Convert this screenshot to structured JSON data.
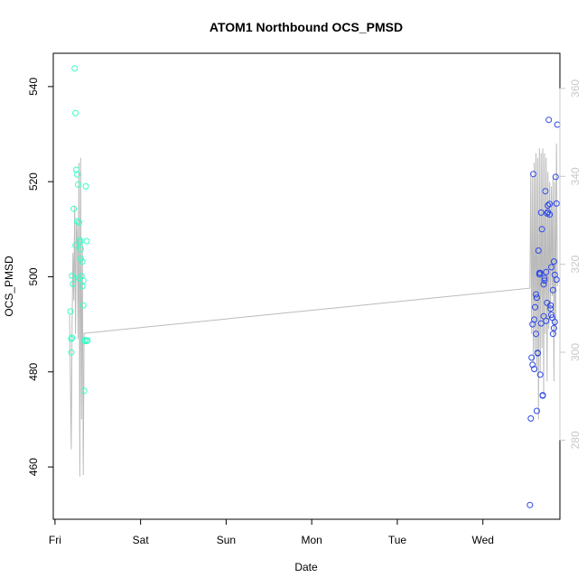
{
  "chart_data": {
    "type": "scatter",
    "title": "ATOM1 Northbound OCS_PMSD",
    "xlabel": "Date",
    "ylabel": "OCS_PMSD",
    "x_ticks": [
      "Fri",
      "Sat",
      "Sun",
      "Mon",
      "Tue",
      "Wed"
    ],
    "xlim": [
      -0.02,
      5.9
    ],
    "ylim": [
      449,
      547
    ],
    "y_ticks": [
      460,
      480,
      500,
      520,
      540
    ],
    "y2_ticks": [
      280,
      300,
      320,
      340,
      360
    ],
    "y2lim": [
      262,
      368
    ],
    "grid": false,
    "colors": {
      "series_fri": "#33ffc4",
      "series_wed": "#2c48e6",
      "line": "#bbbbbb",
      "axis": "#000000",
      "right_axis": "#c8c8c8"
    },
    "series": [
      {
        "color": "#33ffc4",
        "x": [
          0.18,
          0.2,
          0.23,
          0.24,
          0.25,
          0.26,
          0.27,
          0.28,
          0.29,
          0.3,
          0.31,
          0.32,
          0.33,
          0.34,
          0.35,
          0.36,
          0.37,
          0.38,
          0.19,
          0.21,
          0.22,
          0.33,
          0.2,
          0.26,
          0.3,
          0.28,
          0.32,
          0.35,
          0.37,
          0.19,
          0.24,
          0.29
        ],
        "y": [
          492.7,
          487.2,
          543.8,
          534.4,
          522.5,
          521.5,
          519.4,
          511.4,
          507.7,
          503.8,
          500.1,
          498.0,
          494.0,
          476.0,
          486.5,
          519.0,
          507.5,
          486.6,
          484.1,
          498.5,
          514.3,
          499.2,
          500.2,
          511.7,
          505.8,
          499.7,
          503.2,
          486.7,
          486.5,
          486.9,
          506.6,
          507.3
        ]
      },
      {
        "color": "#2c48e6",
        "x": [
          5.55,
          5.57,
          5.59,
          5.6,
          5.61,
          5.62,
          5.63,
          5.64,
          5.65,
          5.66,
          5.67,
          5.68,
          5.69,
          5.7,
          5.71,
          5.72,
          5.73,
          5.74,
          5.75,
          5.76,
          5.77,
          5.78,
          5.79,
          5.8,
          5.81,
          5.82,
          5.83,
          5.84,
          5.85,
          5.86,
          5.56,
          5.58,
          5.6,
          5.62,
          5.64,
          5.66,
          5.68,
          5.7,
          5.72,
          5.74,
          5.76,
          5.78,
          5.8,
          5.82,
          5.84,
          5.86,
          5.58,
          5.63,
          5.67,
          5.71,
          5.75,
          5.79,
          5.83,
          5.87
        ],
        "y": [
          452.0,
          483.0,
          521.6,
          480.6,
          493.6,
          488.0,
          471.8,
          484.0,
          505.5,
          500.5,
          479.4,
          513.5,
          510.0,
          475.1,
          498.4,
          499.2,
          518.0,
          501.0,
          494.5,
          513.6,
          533.0,
          515.3,
          493.3,
          502.0,
          491.4,
          497.2,
          503.2,
          490.5,
          521.0,
          515.4,
          470.2,
          481.5,
          491.0,
          496.3,
          483.9,
          500.8,
          490.2,
          475.0,
          499.7,
          490.7,
          515.0,
          513.1,
          492.0,
          488.0,
          500.4,
          499.4,
          490.0,
          495.6,
          500.8,
          491.7,
          513.3,
          494.0,
          489.2,
          532.0
        ]
      }
    ],
    "line": {
      "x": [
        0.17,
        0.18,
        0.19,
        0.2,
        0.21,
        0.22,
        0.23,
        0.24,
        0.25,
        0.26,
        0.27,
        0.28,
        0.29,
        0.3,
        0.31,
        0.32,
        0.33,
        0.34,
        5.55,
        5.56,
        5.57,
        5.58,
        5.59,
        5.6,
        5.61,
        5.62,
        5.63,
        5.64,
        5.65,
        5.66,
        5.67,
        5.68,
        5.69,
        5.7,
        5.71,
        5.72,
        5.73,
        5.74,
        5.75,
        5.76,
        5.77,
        5.78,
        5.79,
        5.8,
        5.81,
        5.82,
        5.83,
        5.84,
        5.85,
        5.86,
        5.87
      ],
      "y": [
        492.0,
        478.0,
        463.7,
        490.0,
        505.0,
        495.0,
        515.0,
        488.0,
        512.0,
        509.0,
        487.0,
        524.0,
        458.0,
        525.0,
        470.0,
        507.0,
        458.3,
        488.1,
        497.6,
        522.0,
        488.0,
        521.0,
        482.0,
        524.0,
        484.0,
        526.0,
        480.0,
        525.0,
        470.0,
        527.0,
        480.0,
        526.0,
        485.0,
        527.0,
        475.0,
        526.0,
        488.0,
        525.0,
        478.0,
        522.0,
        489.0,
        520.0,
        491.0,
        519.0,
        496.0,
        521.0,
        478.0,
        520.0,
        488.0,
        528.0,
        498.0
      ]
    }
  }
}
